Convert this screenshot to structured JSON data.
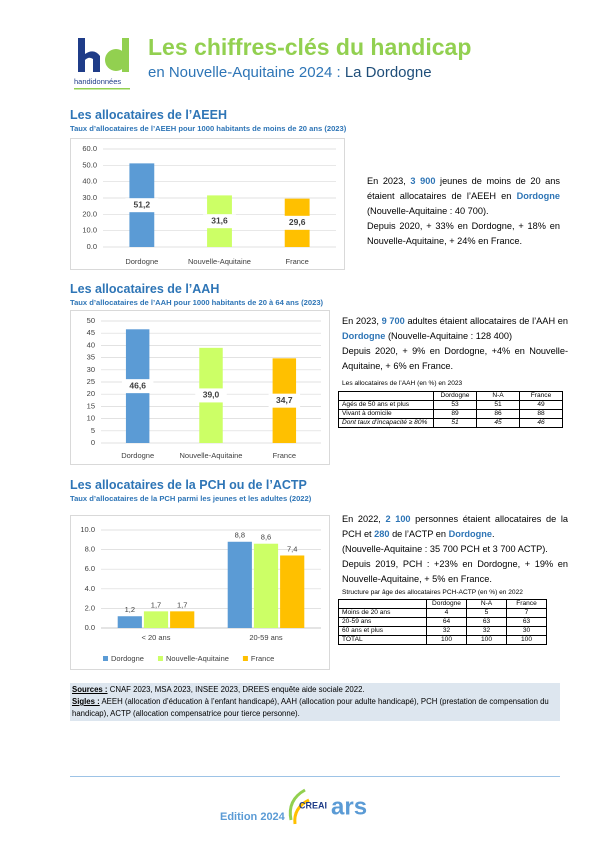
{
  "header": {
    "logo": "handidonnées",
    "title": "Les chiffres-clés du handicap",
    "subtitle": "en Nouvelle-Aquitaine 2024 :",
    "place": "La Dordogne"
  },
  "sections": [
    {
      "heading": "Les allocataires de l’AEEH",
      "chart_subtitle": "Taux d’allocataires de l’AEEH pour 1000 habitants de moins de 20 ans (2023)",
      "text": [
        "En 2023, ",
        "3 900",
        " jeunes de moins de 20 ans étaient allocataires de l’AEEH en ",
        "Dordogne",
        " (Nouvelle-Aquitaine : 40 700).",
        "Depuis 2020, + 33% en Dordogne, + 18% en Nouvelle-Aquitaine, + 24% en France."
      ]
    },
    {
      "heading": "Les allocataires de l’AAH",
      "chart_subtitle": "Taux d’allocataires de l’AAH pour 1000 habitants de 20 à 64 ans (2023)",
      "text": [
        "En 2023, ",
        "9 700",
        " adultes étaient allocataires de l’AAH en ",
        "Dordogne",
        " (Nouvelle-Aquitaine : 128 400)",
        "Depuis 2020, + 9% en Dordogne, +4% en Nouvelle-Aquitaine, + 6% en France."
      ],
      "table": {
        "title": "Les allocataires de l’AAH (en %) en 2023",
        "columns": [
          "Dordogne",
          "N-A",
          "France"
        ],
        "rows": [
          {
            "label": "Agés de 50 ans et plus",
            "values": [
              53,
              51,
              49
            ]
          },
          {
            "label": "Vivant à domicile",
            "values": [
              89,
              86,
              88
            ]
          },
          {
            "label": "Dont taux d’incapacité ≥ 80%",
            "values": [
              51,
              45,
              46
            ]
          }
        ]
      }
    },
    {
      "heading": "Les allocataires de la PCH ou de l’ACTP",
      "chart_subtitle": "Taux d’allocataires de la PCH parmi les jeunes et les adultes (2022)",
      "text": [
        "En 2022, ",
        "2 100",
        " personnes étaient allocataires de la PCH et ",
        "280",
        " de l’ACTP en ",
        "Dordogne",
        ".",
        "(Nouvelle-Aquitaine : 35 700 PCH et 3 700 ACTP).",
        "Depuis 2019, PCH : +23% en Dordogne, + 19% en Nouvelle-Aquitaine, + 5% en France."
      ],
      "table": {
        "title": "Structure par âge des allocataires PCH-ACTP (en %) en 2022",
        "columns": [
          "Dordogne",
          "N-A",
          "France"
        ],
        "rows": [
          {
            "label": "Moins de 20 ans",
            "values": [
              4,
              5,
              7
            ]
          },
          {
            "label": "20-59 ans",
            "values": [
              64,
              63,
              63
            ]
          },
          {
            "label": "60 ans et plus",
            "values": [
              32,
              32,
              30
            ]
          },
          {
            "label": "TOTAL",
            "values": [
              100,
              100,
              100
            ]
          }
        ]
      }
    }
  ],
  "chart_data": [
    {
      "type": "bar",
      "categories": [
        "Dordogne",
        "Nouvelle-Aquitaine",
        "France"
      ],
      "values": [
        51.2,
        31.6,
        29.6
      ],
      "value_labels": [
        "51,2",
        "31,6",
        "29,6"
      ],
      "colors": [
        "#5b9bd5",
        "#ccff66",
        "#ffc000"
      ],
      "ylim": [
        0,
        60
      ],
      "yticks": [
        {
          "value": 0,
          "label": "0.0"
        },
        {
          "value": 10,
          "label": "10.0"
        },
        {
          "value": 20,
          "label": "20.0"
        },
        {
          "value": 30,
          "label": "30.0"
        },
        {
          "value": 40,
          "label": "40.0"
        },
        {
          "value": 50,
          "label": "50.0"
        },
        {
          "value": 60,
          "label": "60.0"
        }
      ],
      "grid": true
    },
    {
      "type": "bar",
      "categories": [
        "Dordogne",
        "Nouvelle-Aquitaine",
        "France"
      ],
      "values": [
        46.6,
        39.0,
        34.7
      ],
      "value_labels": [
        "46,6",
        "39,0",
        "34,7"
      ],
      "colors": [
        "#5b9bd5",
        "#ccff66",
        "#ffc000"
      ],
      "ylim": [
        0,
        50
      ],
      "yticks": [
        0,
        5,
        10,
        15,
        20,
        25,
        30,
        35,
        40,
        45,
        50
      ],
      "grid": true
    },
    {
      "type": "bar",
      "categories": [
        "< 20 ans",
        "20-59 ans"
      ],
      "series": [
        {
          "name": "Dordogne",
          "color": "#5b9bd5",
          "values": [
            1.2,
            8.8
          ],
          "value_labels": [
            "1,2",
            "8,8"
          ]
        },
        {
          "name": "Nouvelle-Aquitaine",
          "color": "#ccff66",
          "values": [
            1.7,
            8.6
          ],
          "value_labels": [
            "1,7",
            "8,6"
          ]
        },
        {
          "name": "France",
          "color": "#ffc000",
          "values": [
            1.7,
            7.4
          ],
          "value_labels": [
            "1,7",
            "7,4"
          ]
        }
      ],
      "ylim": [
        0,
        10
      ],
      "yticks": [
        {
          "value": 0,
          "label": "0.0"
        },
        {
          "value": 2,
          "label": "2.0"
        },
        {
          "value": 4,
          "label": "4.0"
        },
        {
          "value": 6,
          "label": "6.0"
        },
        {
          "value": 8,
          "label": "8.0"
        },
        {
          "value": 10,
          "label": "10.0"
        }
      ],
      "grid": true,
      "legend": "bottom"
    }
  ],
  "sources": {
    "label": "Sources :",
    "text": " CNAF 2023, MSA 2023, INSEE 2023, DREES enquête aide sociale 2022."
  },
  "sigles": {
    "label": "Sigles :",
    "text": " AEEH (allocation d’éducation à l’enfant handicapé), AAH (allocation pour adulte handicapé), PCH (prestation de compensation du handicap), ACTP (allocation compensatrice pour tierce personne)."
  },
  "edition": "Edition 2024",
  "partners": [
    "CREAI",
    "ars"
  ]
}
